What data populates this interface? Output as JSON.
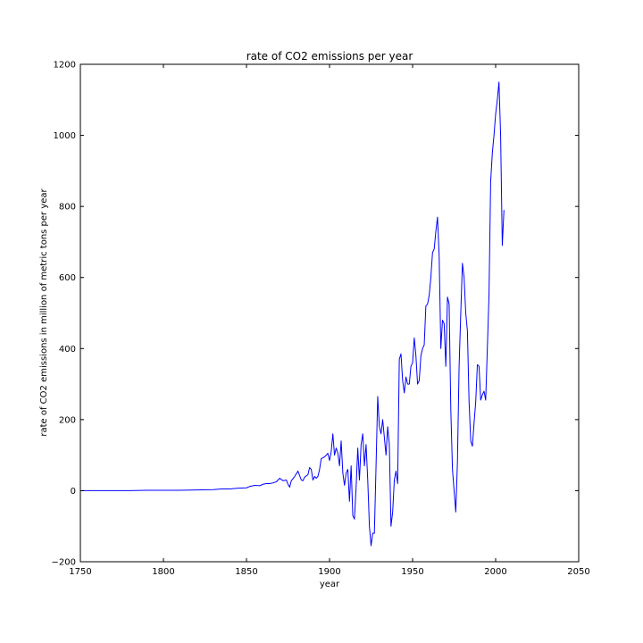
{
  "chart_data": {
    "type": "line",
    "title": "rate of CO2 emissions per year",
    "xlabel": "year",
    "ylabel": "rate of CO2 emissions in million of metric tons per year",
    "xlim": [
      1750,
      2050
    ],
    "ylim": [
      -200,
      1200
    ],
    "xticks": [
      1750,
      1800,
      1850,
      1900,
      1950,
      2000,
      2050
    ],
    "yticks": [
      -200,
      0,
      200,
      400,
      600,
      800,
      1000,
      1200
    ],
    "grid": false,
    "series": [
      {
        "color": "#0000ff",
        "points": [
          [
            1751,
            0
          ],
          [
            1760,
            0
          ],
          [
            1770,
            0
          ],
          [
            1780,
            0
          ],
          [
            1790,
            1
          ],
          [
            1800,
            1
          ],
          [
            1810,
            1
          ],
          [
            1820,
            2
          ],
          [
            1830,
            3
          ],
          [
            1835,
            5
          ],
          [
            1840,
            5
          ],
          [
            1845,
            7
          ],
          [
            1850,
            8
          ],
          [
            1852,
            12
          ],
          [
            1855,
            15
          ],
          [
            1858,
            14
          ],
          [
            1860,
            18
          ],
          [
            1862,
            20
          ],
          [
            1864,
            20
          ],
          [
            1866,
            22
          ],
          [
            1868,
            25
          ],
          [
            1870,
            35
          ],
          [
            1872,
            28
          ],
          [
            1874,
            30
          ],
          [
            1875,
            18
          ],
          [
            1876,
            10
          ],
          [
            1877,
            28
          ],
          [
            1879,
            40
          ],
          [
            1881,
            55
          ],
          [
            1883,
            30
          ],
          [
            1884,
            28
          ],
          [
            1885,
            38
          ],
          [
            1887,
            45
          ],
          [
            1888,
            65
          ],
          [
            1889,
            60
          ],
          [
            1890,
            30
          ],
          [
            1891,
            40
          ],
          [
            1892,
            35
          ],
          [
            1893,
            40
          ],
          [
            1894,
            60
          ],
          [
            1895,
            90
          ],
          [
            1897,
            95
          ],
          [
            1898,
            100
          ],
          [
            1899,
            105
          ],
          [
            1900,
            85
          ],
          [
            1901,
            110
          ],
          [
            1902,
            160
          ],
          [
            1903,
            100
          ],
          [
            1904,
            120
          ],
          [
            1905,
            105
          ],
          [
            1906,
            70
          ],
          [
            1907,
            140
          ],
          [
            1908,
            50
          ],
          [
            1909,
            15
          ],
          [
            1910,
            50
          ],
          [
            1911,
            60
          ],
          [
            1912,
            -30
          ],
          [
            1913,
            70
          ],
          [
            1914,
            -70
          ],
          [
            1915,
            -80
          ],
          [
            1916,
            10
          ],
          [
            1917,
            120
          ],
          [
            1918,
            30
          ],
          [
            1919,
            130
          ],
          [
            1920,
            160
          ],
          [
            1921,
            70
          ],
          [
            1922,
            130
          ],
          [
            1923,
            30
          ],
          [
            1924,
            -100
          ],
          [
            1925,
            -155
          ],
          [
            1926,
            -120
          ],
          [
            1927,
            -120
          ],
          [
            1928,
            70
          ],
          [
            1929,
            265
          ],
          [
            1930,
            180
          ],
          [
            1931,
            160
          ],
          [
            1932,
            200
          ],
          [
            1933,
            150
          ],
          [
            1934,
            100
          ],
          [
            1935,
            180
          ],
          [
            1936,
            130
          ],
          [
            1937,
            -100
          ],
          [
            1938,
            -60
          ],
          [
            1939,
            30
          ],
          [
            1940,
            55
          ],
          [
            1941,
            20
          ],
          [
            1942,
            370
          ],
          [
            1943,
            385
          ],
          [
            1944,
            310
          ],
          [
            1945,
            275
          ],
          [
            1946,
            320
          ],
          [
            1947,
            300
          ],
          [
            1948,
            300
          ],
          [
            1949,
            350
          ],
          [
            1950,
            360
          ],
          [
            1951,
            430
          ],
          [
            1952,
            380
          ],
          [
            1953,
            300
          ],
          [
            1954,
            310
          ],
          [
            1955,
            380
          ],
          [
            1956,
            400
          ],
          [
            1957,
            410
          ],
          [
            1958,
            520
          ],
          [
            1959,
            525
          ],
          [
            1960,
            550
          ],
          [
            1961,
            600
          ],
          [
            1962,
            670
          ],
          [
            1963,
            680
          ],
          [
            1964,
            730
          ],
          [
            1965,
            770
          ],
          [
            1966,
            660
          ],
          [
            1967,
            400
          ],
          [
            1968,
            480
          ],
          [
            1969,
            470
          ],
          [
            1970,
            350
          ],
          [
            1971,
            545
          ],
          [
            1972,
            525
          ],
          [
            1973,
            230
          ],
          [
            1974,
            60
          ],
          [
            1975,
            0
          ],
          [
            1976,
            -60
          ],
          [
            1977,
            80
          ],
          [
            1978,
            350
          ],
          [
            1979,
            500
          ],
          [
            1980,
            640
          ],
          [
            1981,
            600
          ],
          [
            1982,
            500
          ],
          [
            1983,
            450
          ],
          [
            1984,
            250
          ],
          [
            1985,
            140
          ],
          [
            1986,
            125
          ],
          [
            1987,
            190
          ],
          [
            1988,
            250
          ],
          [
            1989,
            355
          ],
          [
            1990,
            350
          ],
          [
            1991,
            255
          ],
          [
            1992,
            270
          ],
          [
            1993,
            280
          ],
          [
            1994,
            255
          ],
          [
            1995,
            400
          ],
          [
            1996,
            550
          ],
          [
            1997,
            870
          ],
          [
            1998,
            950
          ],
          [
            1999,
            1000
          ],
          [
            2000,
            1060
          ],
          [
            2001,
            1100
          ],
          [
            2002,
            1150
          ],
          [
            2003,
            1000
          ],
          [
            2004,
            690
          ],
          [
            2005,
            790
          ]
        ]
      }
    ]
  }
}
